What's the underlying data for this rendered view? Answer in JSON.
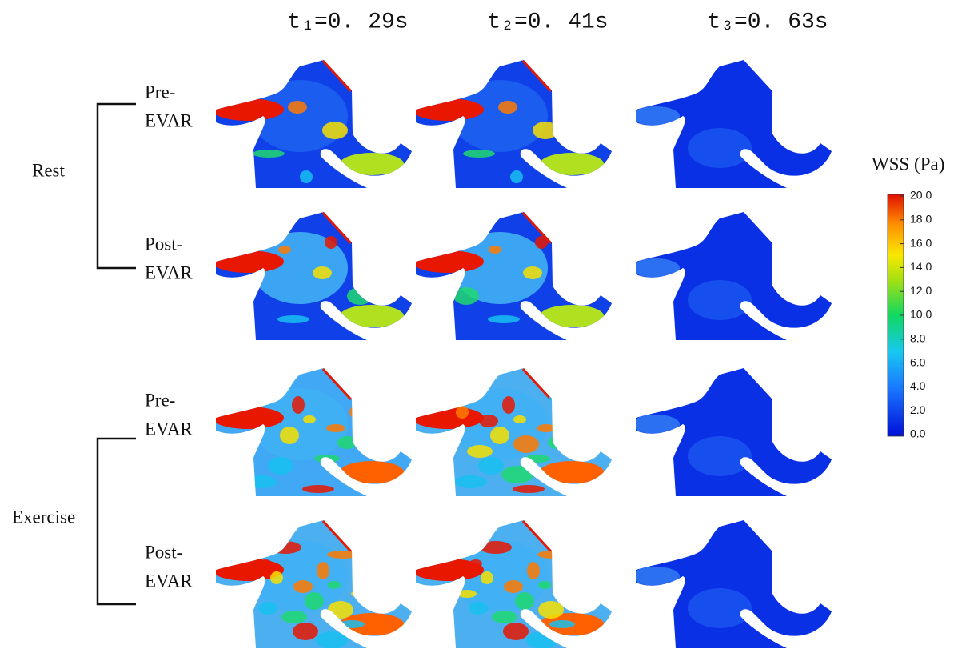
{
  "columns": [
    "t₁=0. 29s",
    "t₂=0. 41s",
    "t₃=0. 63s"
  ],
  "groups": [
    {
      "label": "Rest",
      "rows": [
        [
          "Pre-",
          "EVAR"
        ],
        [
          "Post-",
          "EVAR"
        ]
      ]
    },
    {
      "label": "Exercise",
      "rows": [
        [
          "Pre-",
          "EVAR"
        ],
        [
          "Post-",
          "EVAR"
        ]
      ]
    }
  ],
  "colorbar": {
    "title": "WSS (Pa)",
    "lim": [
      0,
      20
    ],
    "ticks": [
      {
        "value": 0,
        "label": "0.0"
      },
      {
        "value": 2,
        "label": "2.0"
      },
      {
        "value": 4,
        "label": "4.0"
      },
      {
        "value": 6,
        "label": "6.0"
      },
      {
        "value": 8,
        "label": "8.0"
      },
      {
        "value": 10,
        "label": "10.0"
      },
      {
        "value": 12,
        "label": "12.0"
      },
      {
        "value": 14,
        "label": "14.0"
      },
      {
        "value": 16,
        "label": "16.0"
      },
      {
        "value": 18,
        "label": "18.0"
      },
      {
        "value": 20,
        "label": "20.0"
      }
    ]
  }
}
